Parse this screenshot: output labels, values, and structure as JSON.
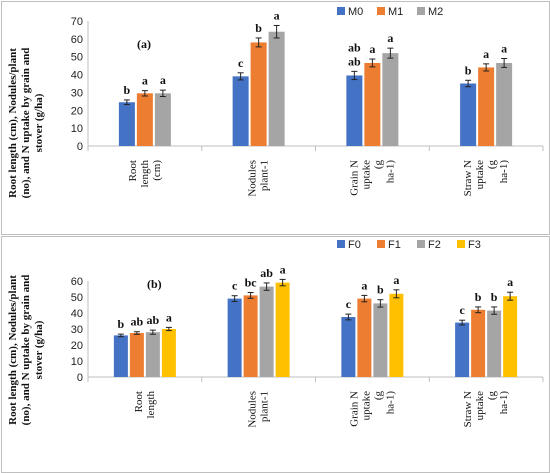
{
  "chart_data": [
    {
      "type": "bar",
      "panel_label": "(a)",
      "ylabel": [
        "Root length (cm), Nodules/plant",
        "(no), and N uptake by grain and",
        "stover (g/ha)"
      ],
      "ylim": [
        0,
        70
      ],
      "yticks": [
        0,
        10,
        20,
        30,
        40,
        50,
        60,
        70
      ],
      "categories": [
        [
          "Root",
          "length",
          "(cm)"
        ],
        [
          "Nodules",
          "plant-1"
        ],
        [
          "Grain N",
          "uptake",
          "(g",
          "ha-1)"
        ],
        [
          "Straw N",
          "uptake",
          "(g",
          "ha-1)"
        ]
      ],
      "legend_position": "top-right",
      "grid": false,
      "series": [
        {
          "name": "M0",
          "color": "#4472c4",
          "values": [
            24.5,
            39,
            39.5,
            35
          ],
          "errors": [
            1.3,
            2,
            2.3,
            1.8
          ],
          "letters": [
            "b",
            "c",
            "ab",
            "b"
          ],
          "letters_extra": [
            "",
            "",
            "ab",
            ""
          ]
        },
        {
          "name": "M1",
          "color": "#ed7d31",
          "values": [
            29.5,
            58,
            46.5,
            44
          ],
          "errors": [
            1.5,
            2.5,
            2.2,
            2
          ],
          "letters": [
            "a",
            "b",
            "a",
            "a"
          ],
          "letters_extra": [
            "",
            "",
            "",
            ""
          ]
        },
        {
          "name": "M2",
          "color": "#a5a5a5",
          "values": [
            29.5,
            64,
            52,
            46.5
          ],
          "errors": [
            1.8,
            3.5,
            2.8,
            2.5
          ],
          "letters": [
            "a",
            "a",
            "a",
            "a"
          ],
          "letters_extra": [
            "",
            "",
            "",
            ""
          ]
        }
      ]
    },
    {
      "type": "bar",
      "panel_label": "(b)",
      "ylabel": [
        "Root length (cm), Nodules/plant",
        "(no), and N uptake by grain and",
        "stover (g/ha)"
      ],
      "ylim": [
        0,
        60
      ],
      "yticks": [
        0,
        10,
        20,
        30,
        40,
        50,
        60
      ],
      "categories": [
        [
          "Root",
          "length"
        ],
        [
          "Nodules",
          "plant-1"
        ],
        [
          "Grain N",
          "uptake",
          "(g",
          "ha-1)"
        ],
        [
          "Straw N",
          "uptake",
          "(g",
          "ha-1)"
        ]
      ],
      "legend_position": "top-right",
      "grid": false,
      "series": [
        {
          "name": "F0",
          "color": "#4472c4",
          "values": [
            26,
            49,
            37.5,
            34
          ],
          "errors": [
            0.8,
            1.8,
            1.8,
            1.5
          ],
          "letters": [
            "b",
            "c",
            "c",
            "c"
          ],
          "letters_extra": [
            "",
            "",
            "",
            ""
          ]
        },
        {
          "name": "F1",
          "color": "#ed7d31",
          "values": [
            27.5,
            51,
            49,
            42
          ],
          "errors": [
            0.8,
            1.8,
            2,
            1.8
          ],
          "letters": [
            "ab",
            "bc",
            "a",
            "b"
          ],
          "letters_extra": [
            "",
            "",
            "",
            ""
          ]
        },
        {
          "name": "F2",
          "color": "#a5a5a5",
          "values": [
            28,
            56.5,
            46,
            41.5
          ],
          "errors": [
            1.3,
            2.3,
            2.3,
            2.3
          ],
          "letters": [
            "ab",
            "ab",
            "b",
            "b"
          ],
          "letters_extra": [
            "",
            "",
            "",
            ""
          ]
        },
        {
          "name": "F3",
          "color": "#ffc000",
          "values": [
            30,
            59,
            52,
            50.5
          ],
          "errors": [
            1,
            2,
            2.5,
            2.5
          ],
          "letters": [
            "a",
            "a",
            "a",
            "a"
          ],
          "letters_extra": [
            "",
            "",
            "",
            ""
          ]
        }
      ]
    }
  ]
}
